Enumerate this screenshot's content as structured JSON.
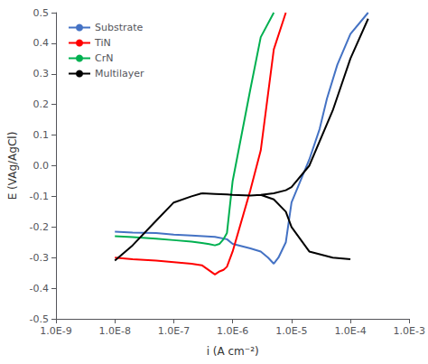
{
  "chart_data": {
    "type": "line",
    "xlabel": "i (A cm⁻²)",
    "ylabel": "E (VAg/AgCl)",
    "log": "x",
    "grid": false,
    "legend": "upper left",
    "xlim": [
      1e-09,
      0.001
    ],
    "xticks": [
      {
        "value": 1e-09,
        "label": "1.0E-9"
      },
      {
        "value": 1e-08,
        "label": "1.0E-8"
      },
      {
        "value": 1e-07,
        "label": "1.0E-7"
      },
      {
        "value": 1e-06,
        "label": "1.0E-6"
      },
      {
        "value": 1e-05,
        "label": "1.0E-5"
      },
      {
        "value": 0.0001,
        "label": "1.0E-4"
      },
      {
        "value": 0.001,
        "label": "1.0E-3"
      }
    ],
    "ylim": [
      -0.5,
      0.5
    ],
    "yticks": [
      -0.5,
      -0.4,
      -0.3,
      -0.2,
      -0.1,
      {
        "value": 0,
        "label": "0.0"
      },
      0.1,
      0.2,
      0.3,
      0.4,
      0.5
    ],
    "series": [
      {
        "name": "Substrate",
        "color": "#4472c4",
        "x": [
          1e-08,
          2e-08,
          5e-08,
          1e-07,
          2e-07,
          5e-07,
          8e-07,
          1e-06,
          2e-06,
          3e-06,
          4e-06,
          5e-06,
          6e-06,
          8e-06,
          1e-05,
          2e-05,
          3e-05,
          4e-05,
          6e-05,
          0.0001,
          0.0002
        ],
        "values": [
          -0.215,
          -0.218,
          -0.22,
          -0.225,
          -0.228,
          -0.232,
          -0.24,
          -0.255,
          -0.27,
          -0.28,
          -0.3,
          -0.32,
          -0.3,
          -0.25,
          -0.12,
          0.02,
          0.12,
          0.22,
          0.33,
          0.43,
          0.5
        ]
      },
      {
        "name": "TiN",
        "color": "#ff0000",
        "x": [
          1e-08,
          2e-08,
          5e-08,
          1e-07,
          2e-07,
          3e-07,
          5e-07,
          6e-07,
          7e-07,
          8e-07,
          1e-06,
          2e-06,
          3e-06,
          5e-06,
          8e-06
        ],
        "values": [
          -0.3,
          -0.305,
          -0.31,
          -0.315,
          -0.32,
          -0.325,
          -0.355,
          -0.345,
          -0.34,
          -0.33,
          -0.28,
          -0.08,
          0.05,
          0.38,
          0.5
        ]
      },
      {
        "name": "CrN",
        "color": "#00b050",
        "x": [
          1e-08,
          2e-08,
          5e-08,
          1e-07,
          2e-07,
          3e-07,
          4e-07,
          5e-07,
          6e-07,
          7e-07,
          8e-07,
          1e-06,
          2e-06,
          3e-06,
          5e-06
        ],
        "values": [
          -0.23,
          -0.233,
          -0.238,
          -0.243,
          -0.248,
          -0.252,
          -0.256,
          -0.26,
          -0.255,
          -0.24,
          -0.22,
          -0.05,
          0.25,
          0.42,
          0.5
        ]
      },
      {
        "name": "Multilayer",
        "color": "#000000",
        "x": [
          1e-08,
          2e-08,
          5e-08,
          1e-07,
          2e-07,
          3e-07,
          null,
          3e-07,
          5e-07,
          8e-07,
          1e-06,
          2e-06,
          3e-06,
          5e-06,
          8e-06,
          1e-05,
          2e-05,
          5e-05,
          0.0001,
          0.0002,
          null,
          3e-06,
          5e-06,
          8e-06,
          1e-05,
          2e-05,
          5e-05,
          0.0001
        ],
        "values": [
          -0.31,
          -0.26,
          -0.18,
          -0.12,
          -0.1,
          -0.09,
          null,
          -0.09,
          -0.092,
          -0.094,
          -0.095,
          -0.097,
          -0.095,
          -0.09,
          -0.08,
          -0.07,
          0.0,
          0.18,
          0.35,
          0.48,
          null,
          -0.095,
          -0.11,
          -0.15,
          -0.2,
          -0.28,
          -0.3,
          -0.305
        ]
      }
    ]
  }
}
